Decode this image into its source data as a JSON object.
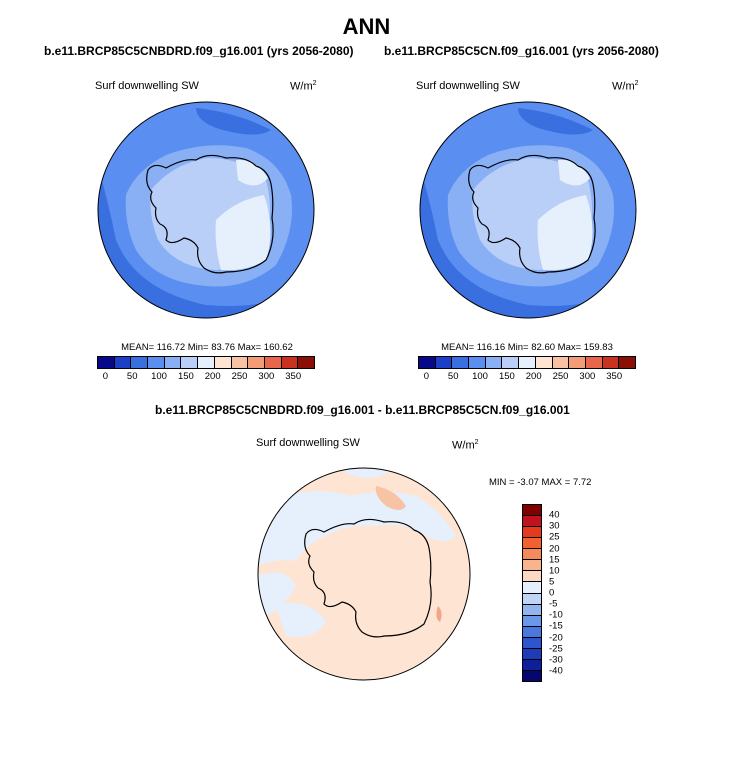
{
  "title": "ANN",
  "panel_left": {
    "case": "b.e11.BRCP85C5CNBDRD.f09_g16.001 (yrs 2056-2080)",
    "variable": "Surf downwelling SW",
    "units_base": "W/m",
    "units_exp": "2",
    "stats_text": "MEAN= 116.72  Min=  83.76  Max= 160.62",
    "mean": 116.72,
    "min": 83.76,
    "max": 160.62
  },
  "panel_right": {
    "case": "b.e11.BRCP85C5CN.f09_g16.001 (yrs 2056-2080)",
    "variable": "Surf downwelling SW",
    "units_base": "W/m",
    "units_exp": "2",
    "stats_text": "MEAN= 116.16  Min=  82.60  Max= 159.83",
    "mean": 116.16,
    "min": 82.6,
    "max": 159.83
  },
  "panel_diff": {
    "case": "b.e11.BRCP85C5CNBDRD.f09_g16.001 - b.e11.BRCP85C5CN.f09_g16.001",
    "variable": "Surf downwelling SW",
    "units_base": "W/m",
    "units_exp": "2",
    "stats_text": "MIN =  -3.07 MAX =   7.72",
    "min": -3.07,
    "max": 7.72
  },
  "abs_colorbar": {
    "colors": [
      "#08088a",
      "#1c3fc8",
      "#3a6fe0",
      "#5a8ef0",
      "#89aff5",
      "#b9cff8",
      "#e6f0fc",
      "#fde4d3",
      "#f8c3a4",
      "#f49b77",
      "#e8674a",
      "#c9321f",
      "#8a0f06"
    ],
    "labels": [
      "0",
      "50",
      "100",
      "150",
      "200",
      "250",
      "300",
      "350"
    ]
  },
  "diff_colorbar": {
    "colors": [
      "#800000",
      "#c1121f",
      "#e63a1f",
      "#f2612f",
      "#f58a5a",
      "#f8b38f",
      "#fcd9c2",
      "#e6f0fc",
      "#c0d5f5",
      "#93b5ee",
      "#6b98ea",
      "#4a78de",
      "#2d55d0",
      "#1e3bb8",
      "#0d1f9a",
      "#06066e"
    ],
    "labels": [
      "40",
      "30",
      "25",
      "20",
      "15",
      "10",
      "5",
      "0",
      "-5",
      "-10",
      "-15",
      "-20",
      "-25",
      "-30",
      "-40"
    ]
  },
  "map_colors": {
    "outer": "#5a8ef0",
    "band": "#3a6fe0",
    "mid": "#89aff5",
    "inner": "#b9cff8",
    "core": "#e6f0fc",
    "diff_base": "#fde4d3",
    "diff_blue": "#e6f0fc",
    "diff_pos": "#f8c3a4",
    "diff_pos2": "#f4a488"
  }
}
